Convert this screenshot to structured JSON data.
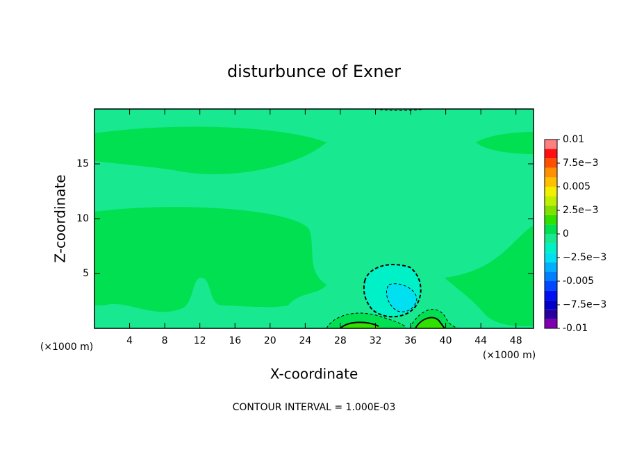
{
  "chart_data": {
    "type": "contour",
    "title": "disturbunce of Exner",
    "xlabel": "X-coordinate",
    "ylabel": "Z-coordinate",
    "x_unit": "(×1000 m)",
    "y_unit": "(×1000 m)",
    "footer": "CONTOUR INTERVAL = 1.000E-03",
    "xlim": [
      0,
      50
    ],
    "xticks": [
      4,
      8,
      12,
      16,
      20,
      24,
      28,
      32,
      36,
      40,
      44,
      48
    ],
    "ylim": [
      0,
      20
    ],
    "yticks": [
      5,
      10,
      15
    ],
    "levels": [
      -0.01,
      -0.009,
      -0.008,
      -0.007,
      -0.006,
      -0.005,
      -0.004,
      -0.003,
      -0.002,
      -0.001,
      0,
      0.001,
      0.002,
      0.003,
      0.004,
      0.005,
      0.006,
      0.007,
      0.008,
      0.009,
      0.01
    ],
    "colors": [
      "#8000b0",
      "#2800a0",
      "#0000c8",
      "#0010f0",
      "#0048ff",
      "#0080ff",
      "#00b0ff",
      "#00e0f0",
      "#00f0c8",
      "#18e890",
      "#00e050",
      "#30e000",
      "#80e000",
      "#c0f000",
      "#f0f000",
      "#ffc000",
      "#ff9000",
      "#ff5000",
      "#ff1010",
      "#ff8080"
    ],
    "colorbar_ticks": [
      -0.01,
      {
        "value": -0.0075,
        "label": "−7.5e−3"
      },
      -0.005,
      {
        "value": -0.0025,
        "label": "−2.5e−3"
      },
      0,
      {
        "value": 0.0025,
        "label": "2.5e−3"
      },
      0.005,
      {
        "value": 0.0075,
        "label": "7.5e−3"
      },
      0.01
    ]
  }
}
